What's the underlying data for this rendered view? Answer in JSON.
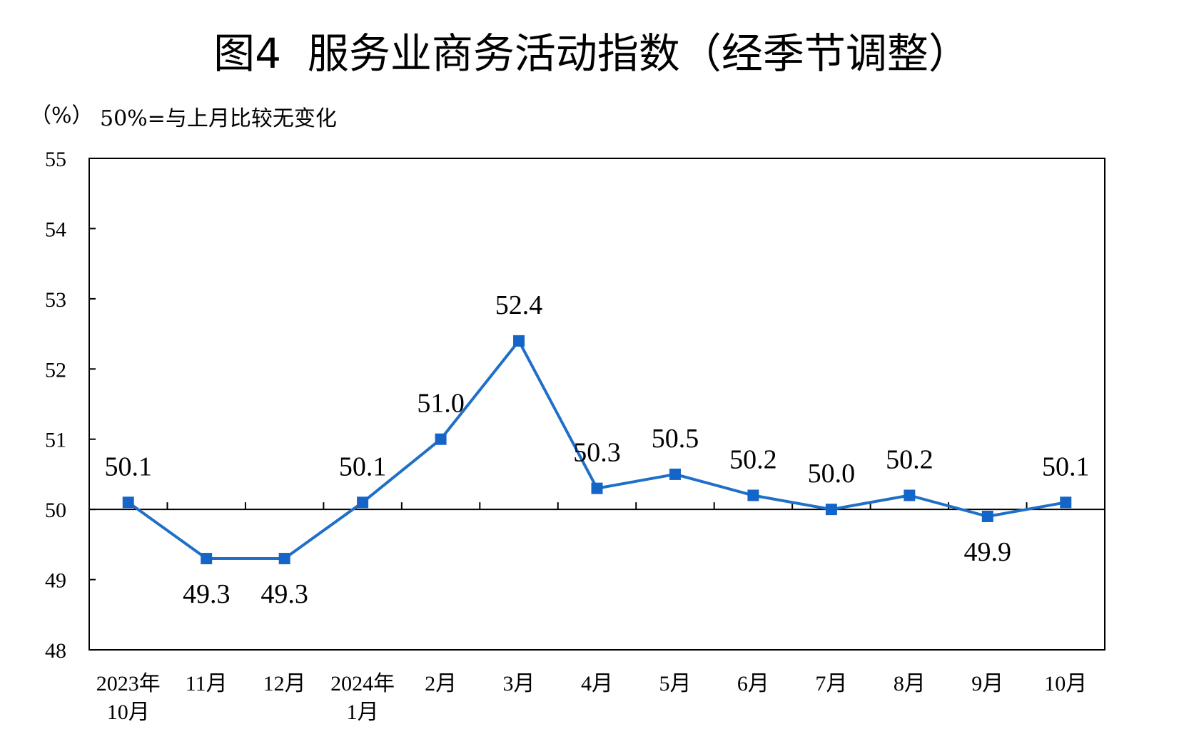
{
  "chart_data": {
    "type": "line",
    "title": "图4  服务业商务活动指数（经季节调整）",
    "unit_label": "（%）",
    "note": "50%=与上月比较无变化",
    "categories": [
      [
        "2023年",
        "10月"
      ],
      [
        "11月"
      ],
      [
        "12月"
      ],
      [
        "2024年",
        "1月"
      ],
      [
        "2月"
      ],
      [
        "3月"
      ],
      [
        "4月"
      ],
      [
        "5月"
      ],
      [
        "6月"
      ],
      [
        "7月"
      ],
      [
        "8月"
      ],
      [
        "9月"
      ],
      [
        "10月"
      ]
    ],
    "values": [
      50.1,
      49.3,
      49.3,
      50.1,
      51.0,
      52.4,
      50.3,
      50.5,
      50.2,
      50.0,
      50.2,
      49.9,
      50.1
    ],
    "value_labels": [
      "50.1",
      "49.3",
      "49.3",
      "50.1",
      "51.0",
      "52.4",
      "50.3",
      "50.5",
      "50.2",
      "50.0",
      "50.2",
      "49.9",
      "50.1"
    ],
    "yticks": [
      "48",
      "49",
      "50",
      "51",
      "52",
      "53",
      "54",
      "55"
    ],
    "ylim": [
      48,
      55
    ],
    "baseline": 50,
    "line_color": "#1f6fc9",
    "marker_color": "#1565c8",
    "grid": false
  }
}
